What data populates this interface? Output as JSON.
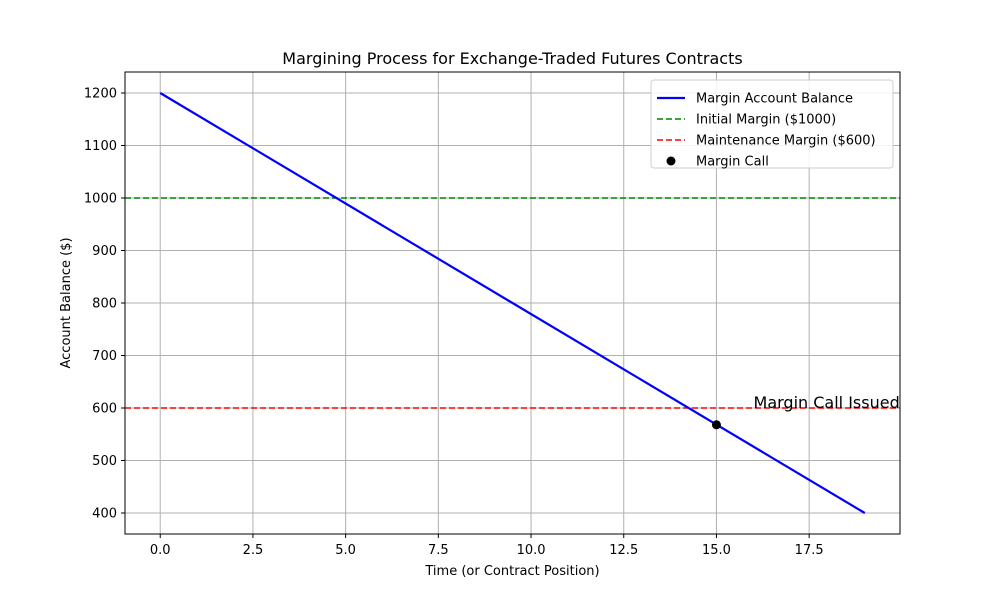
{
  "chart_data": {
    "type": "line",
    "title": "Margining Process for Exchange-Traded Futures Contracts",
    "xlabel": "Time (or Contract Position)",
    "ylabel": "Account Balance ($)",
    "xlim": [
      -0.95,
      19.95
    ],
    "ylim": [
      360,
      1240
    ],
    "xticks": [
      0.0,
      2.5,
      5.0,
      7.5,
      10.0,
      12.5,
      15.0,
      17.5
    ],
    "xtick_labels": [
      "0.0",
      "2.5",
      "5.0",
      "7.5",
      "10.0",
      "12.5",
      "15.0",
      "17.5"
    ],
    "yticks": [
      400,
      500,
      600,
      700,
      800,
      900,
      1000,
      1100,
      1200
    ],
    "ytick_labels": [
      "400",
      "500",
      "600",
      "700",
      "800",
      "900",
      "1000",
      "1100",
      "1200"
    ],
    "grid": true,
    "legend_position": "top-right",
    "series": [
      {
        "name": "Margin Account Balance",
        "kind": "line",
        "color": "#0000ff",
        "style": "solid",
        "x": [
          0,
          19
        ],
        "y": [
          1200,
          400
        ]
      },
      {
        "name": "Initial Margin ($1000)",
        "kind": "hline",
        "color": "#008000",
        "style": "dashed",
        "y": 1000
      },
      {
        "name": "Maintenance Margin ($600)",
        "kind": "hline",
        "color": "#ff0000",
        "style": "dashed",
        "y": 600
      },
      {
        "name": "Margin Call",
        "kind": "scatter",
        "color": "#000000",
        "x": [
          15
        ],
        "y": [
          568
        ]
      }
    ],
    "annotations": [
      {
        "text": "Margin Call Issued",
        "x": 16,
        "y": 600
      }
    ]
  }
}
